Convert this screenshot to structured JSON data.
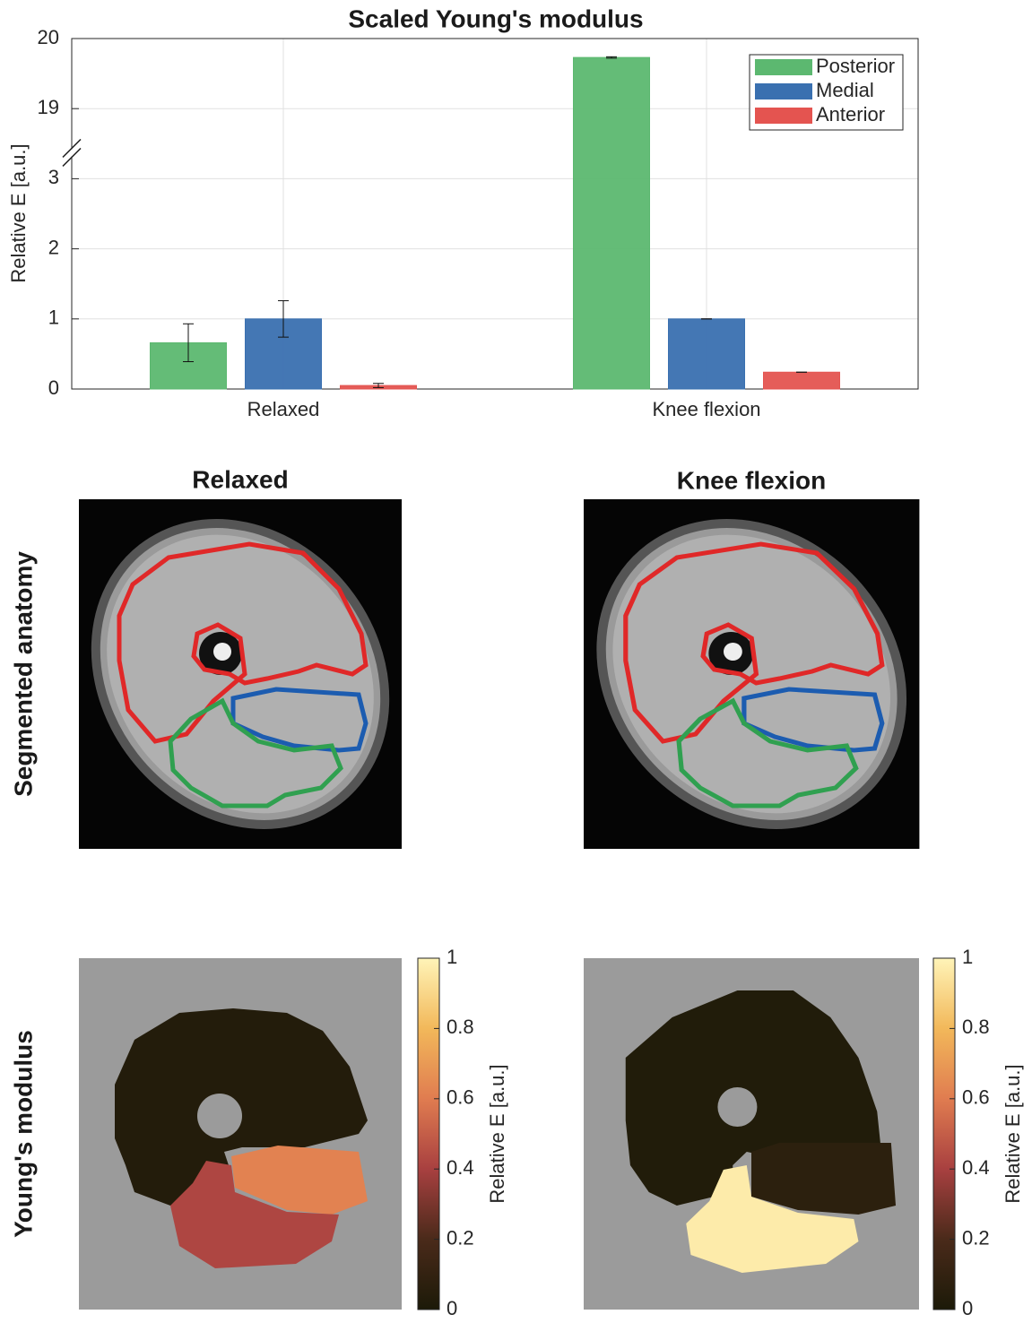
{
  "chart_data": [
    {
      "type": "bar",
      "title": "Scaled Young's modulus",
      "ylabel": "Relative E [a.u.]",
      "categories": [
        "Relaxed",
        "Knee flexion"
      ],
      "series": [
        {
          "name": "Posterior",
          "color": "#5cb870",
          "values": [
            0.66,
            19.73
          ],
          "errors": [
            0.27,
            0.01
          ]
        },
        {
          "name": "Medial",
          "color": "#3a70b0",
          "values": [
            1.0,
            1.0
          ],
          "errors": [
            0.26,
            0.0
          ]
        },
        {
          "name": "Anterior",
          "color": "#e45450",
          "values": [
            0.05,
            0.24
          ],
          "errors": [
            0.03,
            0.0
          ]
        }
      ],
      "ylim": [
        0,
        20
      ],
      "y_break": [
        3.37,
        18.37
      ],
      "yticks": [
        0,
        1,
        2,
        3,
        19,
        20
      ],
      "grid": true,
      "legend": "top-right"
    },
    {
      "type": "regionmap",
      "title": "Relaxed",
      "regions": [
        "Anterior",
        "Medial",
        "Posterior"
      ],
      "values": [
        0.03,
        0.62,
        0.42
      ],
      "colorbar_label": "Relative E [a.u.]",
      "ylim": [
        0,
        1
      ],
      "yticks": [
        0,
        0.2,
        0.4,
        0.6,
        0.8,
        1
      ],
      "colormap": [
        "#1c1a08",
        "#4a2a1a",
        "#a84040",
        "#e07c50",
        "#f2b85a",
        "#fff4b8"
      ]
    },
    {
      "type": "regionmap",
      "title": "Knee flexion",
      "regions": [
        "Anterior",
        "Medial",
        "Posterior"
      ],
      "values": [
        0.02,
        0.07,
        0.97
      ],
      "colorbar_label": "Relative E [a.u.]",
      "ylim": [
        0,
        1
      ],
      "yticks": [
        0,
        0.2,
        0.4,
        0.6,
        0.8,
        1
      ],
      "colormap": [
        "#1c1a08",
        "#4a2a1a",
        "#a84040",
        "#e07c50",
        "#f2b85a",
        "#fff4b8"
      ]
    }
  ],
  "figure": {
    "row_labels": [
      "Segmented anatomy",
      "Young's modulus"
    ]
  }
}
